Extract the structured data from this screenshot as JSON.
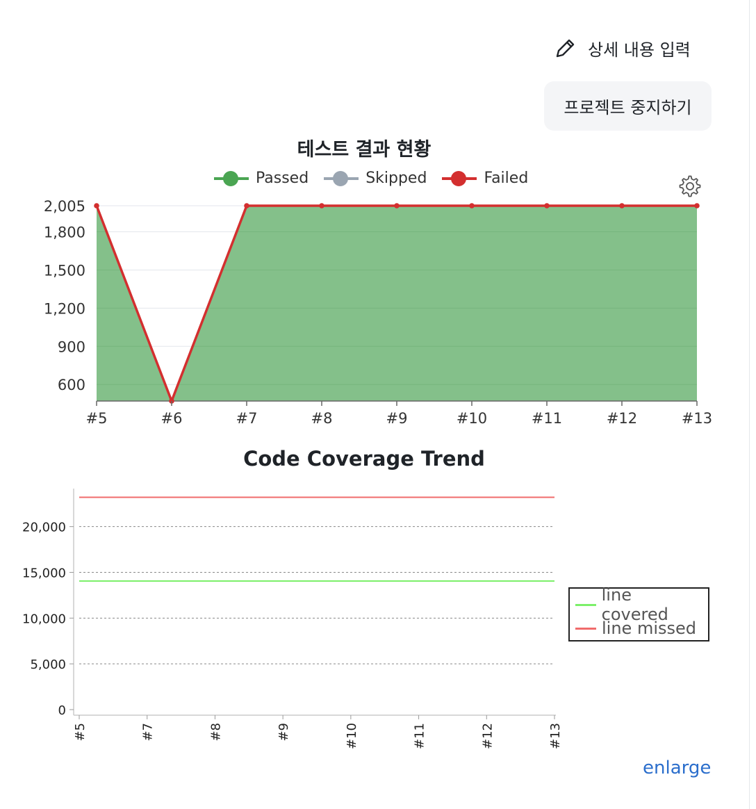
{
  "header": {
    "detail_label": "상세 내용 입력",
    "detail_icon": "pencil-icon",
    "stop_button_label": "프로젝트 중지하기"
  },
  "test_chart": {
    "settings_icon": "gear-icon",
    "chart_data": {
      "type": "area",
      "title": "테스트 결과 현황",
      "x": [
        "#5",
        "#6",
        "#7",
        "#8",
        "#9",
        "#10",
        "#11",
        "#12",
        "#13"
      ],
      "series": [
        {
          "name": "Passed",
          "color": "#4aa552",
          "values": [
            2005,
            470,
            2005,
            2005,
            2005,
            2005,
            2005,
            2005,
            2005
          ]
        },
        {
          "name": "Skipped",
          "color": "#9aa5b1",
          "values": [
            0,
            0,
            0,
            0,
            0,
            0,
            0,
            0,
            0
          ]
        },
        {
          "name": "Failed",
          "color": "#d32f2f",
          "values": [
            0,
            0,
            0,
            0,
            0,
            0,
            0,
            0,
            0
          ]
        }
      ],
      "y_ticks": [
        "2,005",
        "1,800",
        "1,500",
        "1,200",
        "900",
        "600"
      ],
      "y_tick_values": [
        2005,
        1800,
        1500,
        1200,
        900,
        600
      ],
      "ylim": [
        470,
        2005
      ],
      "legend_position": "top",
      "grid": true
    }
  },
  "coverage_chart": {
    "chart_data": {
      "type": "line",
      "title": "Code Coverage Trend",
      "x": [
        "#5",
        "#7",
        "#8",
        "#9",
        "#10",
        "#11",
        "#12",
        "#13"
      ],
      "series": [
        {
          "name": "line covered",
          "color": "#7cf06a",
          "values": [
            14050,
            14050,
            14050,
            14050,
            14050,
            14050,
            14050,
            14050
          ]
        },
        {
          "name": "line missed",
          "color": "#f06b6b",
          "values": [
            23200,
            23200,
            23200,
            23200,
            23200,
            23200,
            23200,
            23200
          ]
        }
      ],
      "y_ticks": [
        "20,000",
        "15,000",
        "10,000",
        "5,000",
        "0"
      ],
      "y_tick_values": [
        20000,
        15000,
        10000,
        5000,
        0
      ],
      "ylim": [
        0,
        24000
      ],
      "legend_position": "right",
      "grid": true
    },
    "enlarge_label": "enlarge"
  }
}
